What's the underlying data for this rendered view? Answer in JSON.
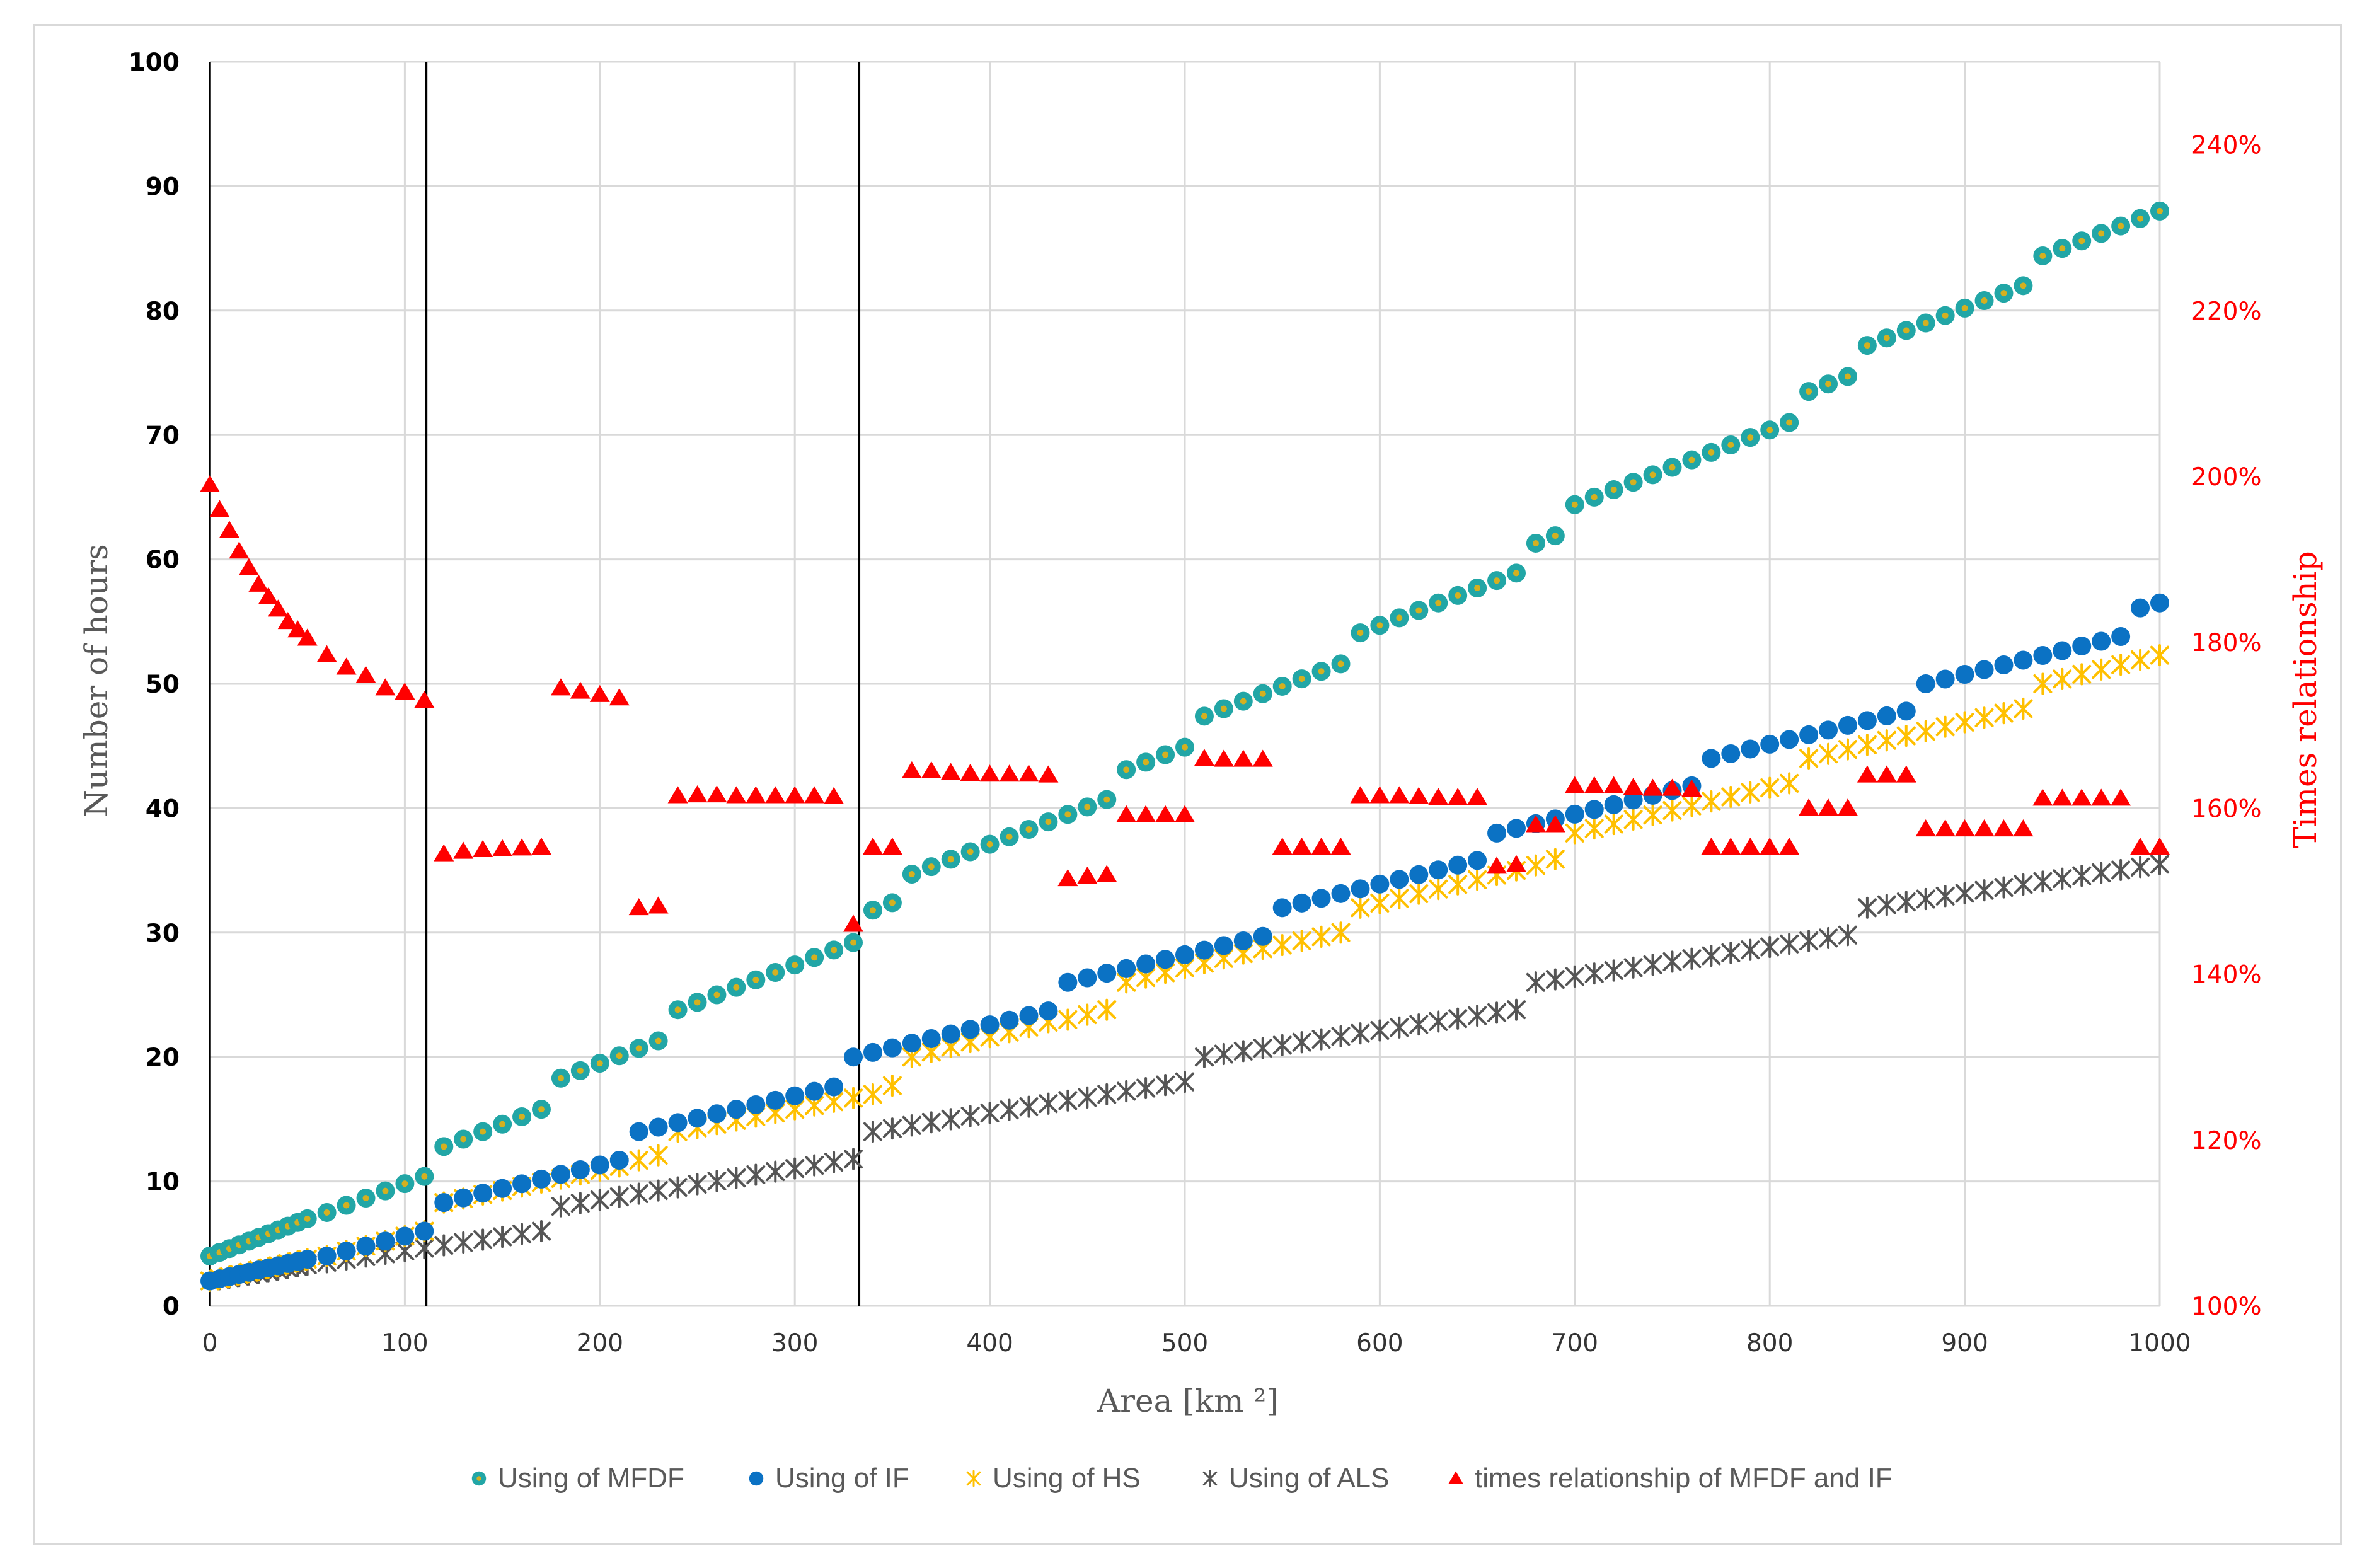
{
  "chart_data": {
    "type": "scatter",
    "title": "",
    "xlabel": "Area [km ²]",
    "ylabel": "Number of hours",
    "y2label": "Times relationship",
    "xlim": [
      0,
      1000
    ],
    "ylim": [
      0,
      100
    ],
    "y2lim": [
      1.0,
      2.5
    ],
    "x_ticks": [
      "0",
      "100",
      "200",
      "300",
      "400",
      "500",
      "600",
      "700",
      "800",
      "900",
      "1000"
    ],
    "y_ticks": [
      "0",
      "10",
      "20",
      "30",
      "40",
      "50",
      "60",
      "70",
      "80",
      "90",
      "100"
    ],
    "y2_ticks": [
      "100%",
      "120%",
      "140%",
      "160%",
      "180%",
      "200%",
      "220%",
      "240%"
    ],
    "grid": true,
    "vertical_lines": [
      0,
      111,
      333
    ],
    "colors": {
      "mfdf": "#22a6a6",
      "mfdf_center": "#d4b020",
      "if": "#0b72c4",
      "hs": "#ffc000",
      "als": "#555555",
      "ratio": "#ff0000",
      "grid": "#d9d9d9",
      "axis_right": "#ff0000"
    },
    "legend": {
      "position": "bottom",
      "entries": [
        "Using of MFDF",
        "Using of IF",
        "Using of HS",
        "Using of ALS",
        "times relationship of MFDF and IF"
      ]
    },
    "series": [
      {
        "name": "Using of MFDF",
        "segments": [
          {
            "x0": 0,
            "x1": 50,
            "y0": 4.0,
            "y1": 7.0,
            "n": 11
          },
          {
            "x0": 60,
            "x1": 110,
            "y0": 7.5,
            "y1": 10.4,
            "n": 6
          },
          {
            "x0": 120,
            "x1": 170,
            "y0": 12.8,
            "y1": 15.8,
            "n": 6
          },
          {
            "x0": 180,
            "x1": 230,
            "y0": 18.3,
            "y1": 21.3,
            "n": 6
          },
          {
            "x0": 240,
            "x1": 330,
            "y0": 23.8,
            "y1": 29.2,
            "n": 10
          },
          {
            "x0": 340,
            "x1": 350,
            "y0": 31.8,
            "y1": 32.4,
            "n": 2
          },
          {
            "x0": 360,
            "x1": 460,
            "y0": 34.7,
            "y1": 40.7,
            "n": 11
          },
          {
            "x0": 470,
            "x1": 500,
            "y0": 43.1,
            "y1": 44.9,
            "n": 4
          },
          {
            "x0": 510,
            "x1": 580,
            "y0": 47.4,
            "y1": 51.6,
            "n": 8
          },
          {
            "x0": 590,
            "x1": 670,
            "y0": 54.1,
            "y1": 58.9,
            "n": 9
          },
          {
            "x0": 680,
            "x1": 690,
            "y0": 61.3,
            "y1": 61.9,
            "n": 2
          },
          {
            "x0": 700,
            "x1": 810,
            "y0": 64.4,
            "y1": 71.0,
            "n": 12
          },
          {
            "x0": 820,
            "x1": 840,
            "y0": 73.5,
            "y1": 74.7,
            "n": 3
          },
          {
            "x0": 850,
            "x1": 930,
            "y0": 77.2,
            "y1": 82.0,
            "n": 9
          },
          {
            "x0": 940,
            "x1": 1000,
            "y0": 84.4,
            "y1": 88.0,
            "n": 7
          }
        ]
      },
      {
        "name": "Using of IF",
        "segments": [
          {
            "x0": 0,
            "x1": 50,
            "y0": 2.0,
            "y1": 3.75,
            "n": 11
          },
          {
            "x0": 60,
            "x1": 110,
            "y0": 4.0,
            "y1": 6.0,
            "n": 6
          },
          {
            "x0": 120,
            "x1": 210,
            "y0": 8.3,
            "y1": 11.7,
            "n": 10
          },
          {
            "x0": 220,
            "x1": 320,
            "y0": 14.0,
            "y1": 17.6,
            "n": 11
          },
          {
            "x0": 330,
            "x1": 430,
            "y0": 20.0,
            "y1": 23.7,
            "n": 11
          },
          {
            "x0": 440,
            "x1": 540,
            "y0": 26.0,
            "y1": 29.7,
            "n": 11
          },
          {
            "x0": 550,
            "x1": 650,
            "y0": 32.0,
            "y1": 35.8,
            "n": 11
          },
          {
            "x0": 660,
            "x1": 760,
            "y0": 38.0,
            "y1": 41.8,
            "n": 11
          },
          {
            "x0": 770,
            "x1": 870,
            "y0": 44.0,
            "y1": 47.8,
            "n": 11
          },
          {
            "x0": 880,
            "x1": 980,
            "y0": 50.0,
            "y1": 53.8,
            "n": 11
          },
          {
            "x0": 990,
            "x1": 1000,
            "y0": 56.1,
            "y1": 56.5,
            "n": 2
          }
        ]
      },
      {
        "name": "Using of HS",
        "segments": [
          {
            "x0": 0,
            "x1": 50,
            "y0": 2.0,
            "y1": 3.75,
            "n": 11
          },
          {
            "x0": 60,
            "x1": 110,
            "y0": 4.0,
            "y1": 6.0,
            "n": 6
          },
          {
            "x0": 120,
            "x1": 210,
            "y0": 8.3,
            "y1": 11.2,
            "n": 10
          },
          {
            "x0": 220,
            "x1": 230,
            "y0": 11.7,
            "y1": 12.1,
            "n": 2
          },
          {
            "x0": 240,
            "x1": 330,
            "y0": 14.0,
            "y1": 16.7,
            "n": 10
          },
          {
            "x0": 340,
            "x1": 350,
            "y0": 17.0,
            "y1": 17.7,
            "n": 2
          },
          {
            "x0": 360,
            "x1": 430,
            "y0": 20.0,
            "y1": 22.8,
            "n": 8
          },
          {
            "x0": 440,
            "x1": 460,
            "y0": 23.0,
            "y1": 23.8,
            "n": 3
          },
          {
            "x0": 470,
            "x1": 540,
            "y0": 26.0,
            "y1": 28.7,
            "n": 8
          },
          {
            "x0": 550,
            "x1": 580,
            "y0": 29.0,
            "y1": 30.0,
            "n": 4
          },
          {
            "x0": 590,
            "x1": 670,
            "y0": 32.0,
            "y1": 35.0,
            "n": 9
          },
          {
            "x0": 680,
            "x1": 690,
            "y0": 35.4,
            "y1": 35.9,
            "n": 2
          },
          {
            "x0": 700,
            "x1": 810,
            "y0": 38.0,
            "y1": 42.0,
            "n": 12
          },
          {
            "x0": 820,
            "x1": 930,
            "y0": 44.0,
            "y1": 48.0,
            "n": 12
          },
          {
            "x0": 940,
            "x1": 1000,
            "y0": 50.0,
            "y1": 52.3,
            "n": 7
          }
        ]
      },
      {
        "name": "Using of ALS",
        "segments": [
          {
            "x0": 0,
            "x1": 50,
            "y0": 2.0,
            "y1": 3.3,
            "n": 11
          },
          {
            "x0": 60,
            "x1": 170,
            "y0": 3.5,
            "y1": 6.0,
            "n": 12
          },
          {
            "x0": 180,
            "x1": 330,
            "y0": 8.0,
            "y1": 11.8,
            "n": 16
          },
          {
            "x0": 340,
            "x1": 500,
            "y0": 14.0,
            "y1": 18.0,
            "n": 17
          },
          {
            "x0": 510,
            "x1": 670,
            "y0": 20.0,
            "y1": 23.8,
            "n": 17
          },
          {
            "x0": 680,
            "x1": 840,
            "y0": 26.0,
            "y1": 29.8,
            "n": 17
          },
          {
            "x0": 850,
            "x1": 1000,
            "y0": 32.0,
            "y1": 35.5,
            "n": 16
          }
        ]
      },
      {
        "name": "times relationship of MFDF and IF",
        "axis": "right",
        "points": [
          [
            0,
            1.99
          ],
          [
            5,
            1.96
          ],
          [
            10,
            1.935
          ],
          [
            15,
            1.91
          ],
          [
            20,
            1.89
          ],
          [
            25,
            1.87
          ],
          [
            30,
            1.855
          ],
          [
            35,
            1.84
          ],
          [
            40,
            1.825
          ],
          [
            45,
            1.815
          ],
          [
            50,
            1.805
          ],
          [
            60,
            1.785
          ],
          [
            70,
            1.77
          ],
          [
            80,
            1.76
          ],
          [
            90,
            1.745
          ],
          [
            100,
            1.74
          ],
          [
            110,
            1.73
          ],
          [
            120,
            1.545
          ],
          [
            130,
            1.548
          ],
          [
            140,
            1.55
          ],
          [
            150,
            1.551
          ],
          [
            160,
            1.552
          ],
          [
            170,
            1.553
          ],
          [
            180,
            1.745
          ],
          [
            190,
            1.741
          ],
          [
            200,
            1.737
          ],
          [
            210,
            1.733
          ],
          [
            220,
            1.48
          ],
          [
            230,
            1.482
          ],
          [
            240,
            1.615
          ],
          [
            250,
            1.616
          ],
          [
            260,
            1.616
          ],
          [
            270,
            1.615
          ],
          [
            280,
            1.615
          ],
          [
            290,
            1.615
          ],
          [
            300,
            1.615
          ],
          [
            310,
            1.615
          ],
          [
            320,
            1.614
          ],
          [
            330,
            1.46
          ],
          [
            340,
            1.553
          ],
          [
            350,
            1.553
          ],
          [
            360,
            1.645
          ],
          [
            370,
            1.645
          ],
          [
            380,
            1.643
          ],
          [
            390,
            1.642
          ],
          [
            400,
            1.641
          ],
          [
            410,
            1.641
          ],
          [
            420,
            1.641
          ],
          [
            430,
            1.64
          ],
          [
            440,
            1.515
          ],
          [
            450,
            1.518
          ],
          [
            460,
            1.52
          ],
          [
            470,
            1.592
          ],
          [
            480,
            1.592
          ],
          [
            490,
            1.592
          ],
          [
            500,
            1.592
          ],
          [
            510,
            1.66
          ],
          [
            520,
            1.659
          ],
          [
            530,
            1.659
          ],
          [
            540,
            1.659
          ],
          [
            550,
            1.553
          ],
          [
            560,
            1.553
          ],
          [
            570,
            1.553
          ],
          [
            580,
            1.553
          ],
          [
            590,
            1.615
          ],
          [
            600,
            1.615
          ],
          [
            610,
            1.615
          ],
          [
            620,
            1.614
          ],
          [
            630,
            1.613
          ],
          [
            640,
            1.613
          ],
          [
            650,
            1.613
          ],
          [
            660,
            1.53
          ],
          [
            670,
            1.532
          ],
          [
            680,
            1.58
          ],
          [
            690,
            1.58
          ],
          [
            700,
            1.627
          ],
          [
            710,
            1.627
          ],
          [
            720,
            1.627
          ],
          [
            730,
            1.625
          ],
          [
            740,
            1.624
          ],
          [
            750,
            1.624
          ],
          [
            760,
            1.623
          ],
          [
            770,
            1.553
          ],
          [
            780,
            1.553
          ],
          [
            790,
            1.553
          ],
          [
            800,
            1.553
          ],
          [
            810,
            1.553
          ],
          [
            820,
            1.6
          ],
          [
            830,
            1.6
          ],
          [
            840,
            1.6
          ],
          [
            850,
            1.64
          ],
          [
            860,
            1.64
          ],
          [
            870,
            1.64
          ],
          [
            880,
            1.575
          ],
          [
            890,
            1.575
          ],
          [
            900,
            1.575
          ],
          [
            910,
            1.575
          ],
          [
            920,
            1.575
          ],
          [
            930,
            1.575
          ],
          [
            940,
            1.612
          ],
          [
            950,
            1.612
          ],
          [
            960,
            1.612
          ],
          [
            970,
            1.612
          ],
          [
            980,
            1.612
          ],
          [
            990,
            1.553
          ],
          [
            1000,
            1.553
          ]
        ]
      }
    ]
  }
}
